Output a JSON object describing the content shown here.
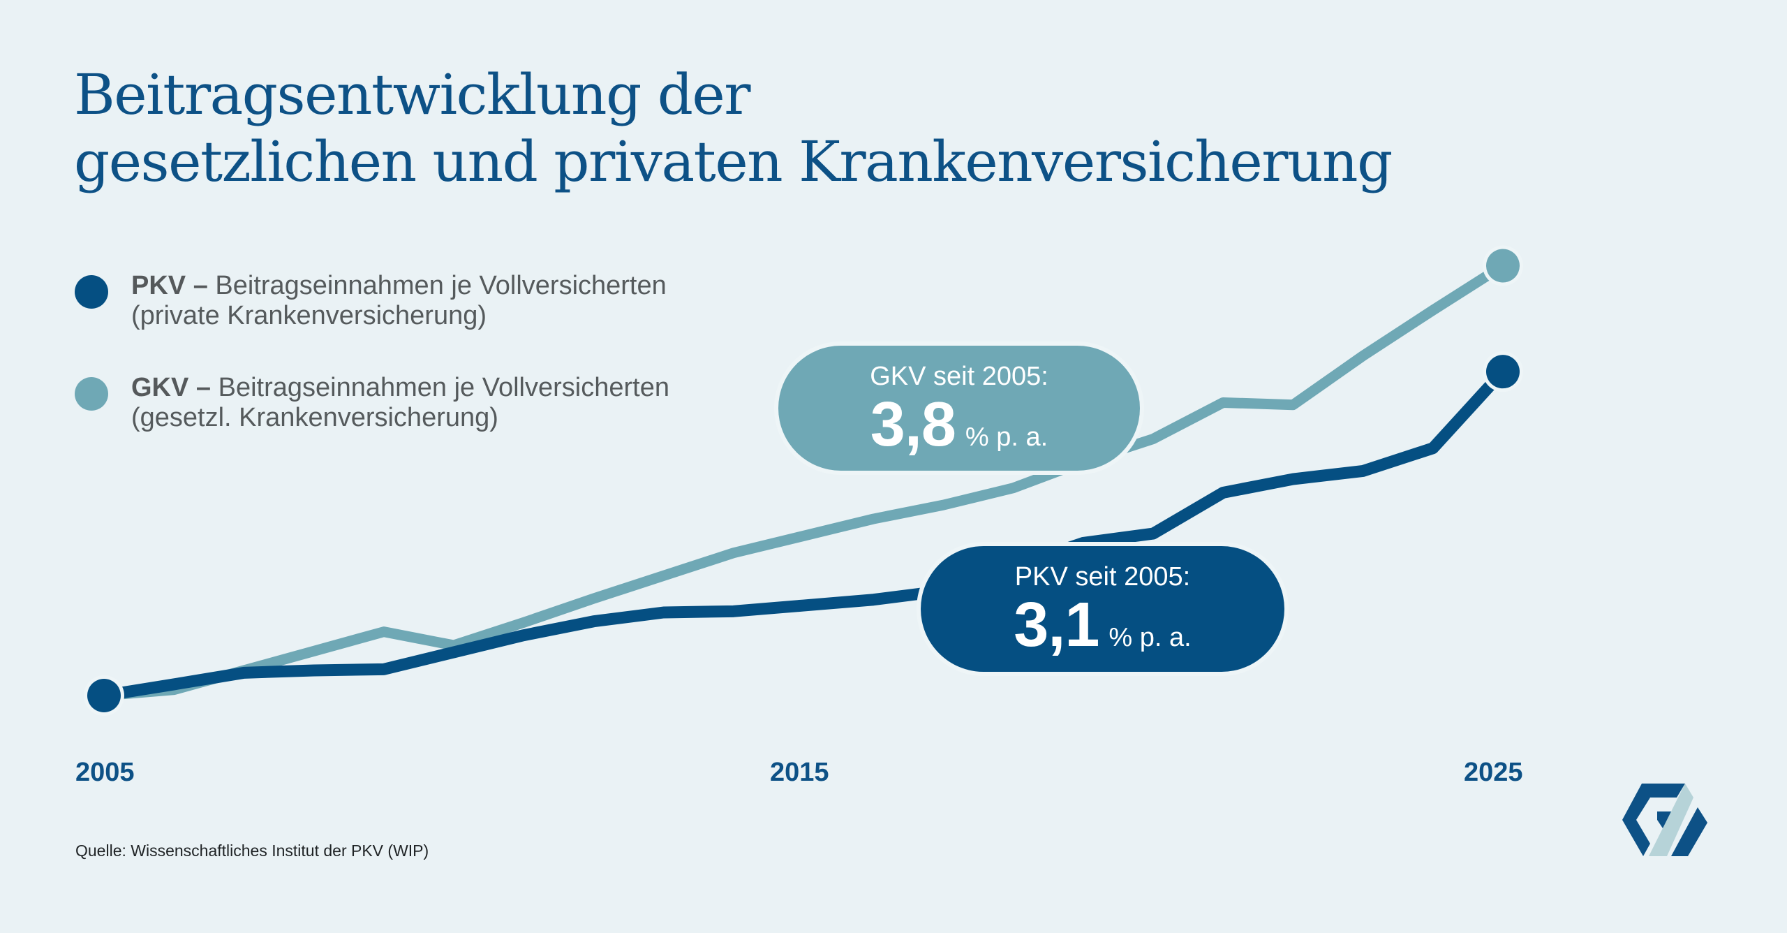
{
  "title": {
    "line1": "Beitragsentwicklung der",
    "line2": "gesetzlichen und privaten Krankenversicherung"
  },
  "legend": [
    {
      "key": "pkv",
      "abbr": "PKV –",
      "label": "Beitragseinnahmen je Vollversicherten",
      "sublabel": "(private Krankenversicherung)",
      "color": "#054f82"
    },
    {
      "key": "gkv",
      "abbr": "GKV –",
      "label": "Beitragseinnahmen je Vollversicherten",
      "sublabel": "(gesetzl. Krankenversicherung)",
      "color": "#6fa8b5"
    }
  ],
  "callouts": {
    "gkv": {
      "heading": "GKV seit 2005:",
      "value": "3,8",
      "unit": "% p. a.",
      "color": "#6fa8b5"
    },
    "pkv": {
      "heading": "PKV seit 2005:",
      "value": "3,1",
      "unit": "% p. a.",
      "color": "#054f82"
    }
  },
  "source": "Quelle: Wissenschaftliches Institut der PKV (WIP)",
  "logo": {
    "icon": "pkv-logo-icon",
    "colors": [
      "#0d5186",
      "#b6d3d8"
    ]
  },
  "chart_data": {
    "type": "line",
    "title": "Beitragsentwicklung der gesetzlichen und privaten Krankenversicherung",
    "xlabel": "",
    "ylabel": "",
    "y_unit": "index (2005 = 100), estimated",
    "x": [
      2005,
      2006,
      2007,
      2008,
      2009,
      2010,
      2011,
      2012,
      2013,
      2014,
      2015,
      2016,
      2017,
      2018,
      2019,
      2020,
      2021,
      2022,
      2023,
      2024,
      2025
    ],
    "x_tick_labels": [
      "2005",
      "2015",
      "2025"
    ],
    "x_ticks": [
      2005,
      2015,
      2025
    ],
    "xlim": [
      2005,
      2025
    ],
    "ylim": [
      100,
      212
    ],
    "grid": false,
    "legend_position": "top-left",
    "series": [
      {
        "name": "PKV – Beitragseinnahmen je Vollversicherten (private Krankenversicherung)",
        "key": "pkv",
        "color": "#054f82",
        "values": [
          100,
          102.9,
          105.9,
          106.5,
          106.8,
          111.2,
          115.6,
          119.2,
          121.5,
          121.8,
          123.3,
          124.8,
          127.1,
          133.3,
          139.5,
          141.9,
          152.5,
          156.0,
          158.1,
          164.0,
          183.8
        ],
        "annotation": "PKV seit 2005: 3,1 % p. a."
      },
      {
        "name": "GKV – Beitragseinnahmen je Vollversicherten (gesetzl. Krankenversicherung)",
        "key": "gkv",
        "color": "#6fa8b5",
        "values": [
          100,
          101.5,
          106.5,
          111.5,
          116.5,
          113.0,
          118.9,
          125.1,
          131.0,
          136.9,
          141.3,
          145.7,
          149.3,
          153.7,
          160.5,
          166.4,
          175.8,
          175.2,
          187.9,
          199.7,
          211.2
        ],
        "annotation": "GKV seit 2005: 3,8 % p. a."
      }
    ]
  }
}
